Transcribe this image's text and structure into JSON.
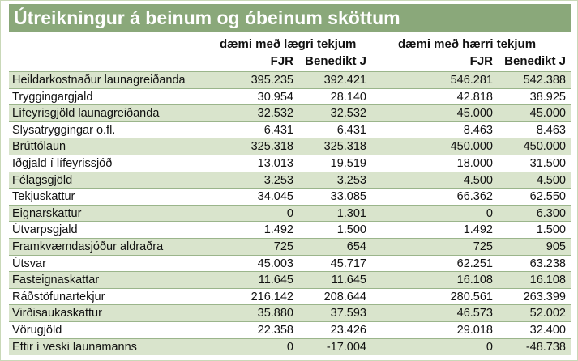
{
  "title": "Útreikningur á beinum og óbeinum sköttum",
  "groups": {
    "lower": "dæmi með lægri tekjum",
    "higher": "dæmi með hærri tekjum"
  },
  "columns": {
    "lower_fjr": "FJR",
    "lower_bj": "Benedikt J",
    "higher_fjr": "FJR",
    "higher_bj": "Benedikt J"
  },
  "rows": [
    {
      "label": "Heildarkostnaður launagreiðanda",
      "lower_fjr": "395.235",
      "lower_bj": "392.421",
      "higher_fjr": "546.281",
      "higher_bj": "542.388"
    },
    {
      "label": "Tryggingargjald",
      "lower_fjr": "30.954",
      "lower_bj": "28.140",
      "higher_fjr": "42.818",
      "higher_bj": "38.925"
    },
    {
      "label": "Lífeyrisgjöld launagreiðanda",
      "lower_fjr": "32.532",
      "lower_bj": "32.532",
      "higher_fjr": "45.000",
      "higher_bj": "45.000"
    },
    {
      "label": "Slysatryggingar o.fl.",
      "lower_fjr": "6.431",
      "lower_bj": "6.431",
      "higher_fjr": "8.463",
      "higher_bj": "8.463"
    },
    {
      "label": "Brúttólaun",
      "lower_fjr": "325.318",
      "lower_bj": "325.318",
      "higher_fjr": "450.000",
      "higher_bj": "450.000"
    },
    {
      "label": "Iðgjald í lífeyrissjóð",
      "lower_fjr": "13.013",
      "lower_bj": "19.519",
      "higher_fjr": "18.000",
      "higher_bj": "31.500"
    },
    {
      "label": "Félagsgjöld",
      "lower_fjr": "3.253",
      "lower_bj": "3.253",
      "higher_fjr": "4.500",
      "higher_bj": "4.500"
    },
    {
      "label": "Tekjuskattur",
      "lower_fjr": "34.045",
      "lower_bj": "33.085",
      "higher_fjr": "66.362",
      "higher_bj": "62.550"
    },
    {
      "label": "Eignarskattur",
      "lower_fjr": "0",
      "lower_bj": "1.301",
      "higher_fjr": "0",
      "higher_bj": "6.300"
    },
    {
      "label": "Útvarpsgjald",
      "lower_fjr": "1.492",
      "lower_bj": "1.500",
      "higher_fjr": "1.492",
      "higher_bj": "1.500"
    },
    {
      "label": "Framkvæmdasjóður aldraðra",
      "lower_fjr": "725",
      "lower_bj": "654",
      "higher_fjr": "725",
      "higher_bj": "905"
    },
    {
      "label": "Útsvar",
      "lower_fjr": "45.003",
      "lower_bj": "45.717",
      "higher_fjr": "62.251",
      "higher_bj": "63.238"
    },
    {
      "label": "Fasteignaskattar",
      "lower_fjr": "11.645",
      "lower_bj": "11.645",
      "higher_fjr": "16.108",
      "higher_bj": "16.108"
    },
    {
      "label": "Ráðstöfunartekjur",
      "lower_fjr": "216.142",
      "lower_bj": "208.644",
      "higher_fjr": "280.561",
      "higher_bj": "263.399"
    },
    {
      "label": "Virðisaukaskattur",
      "lower_fjr": "35.880",
      "lower_bj": "37.593",
      "higher_fjr": "46.573",
      "higher_bj": "52.002"
    },
    {
      "label": "Vörugjöld",
      "lower_fjr": "22.358",
      "lower_bj": "23.426",
      "higher_fjr": "29.018",
      "higher_bj": "32.400"
    },
    {
      "label": "Eftir í veski launamanns",
      "lower_fjr": "0",
      "lower_bj": "-17.004",
      "higher_fjr": "0",
      "higher_bj": "-48.738"
    }
  ]
}
